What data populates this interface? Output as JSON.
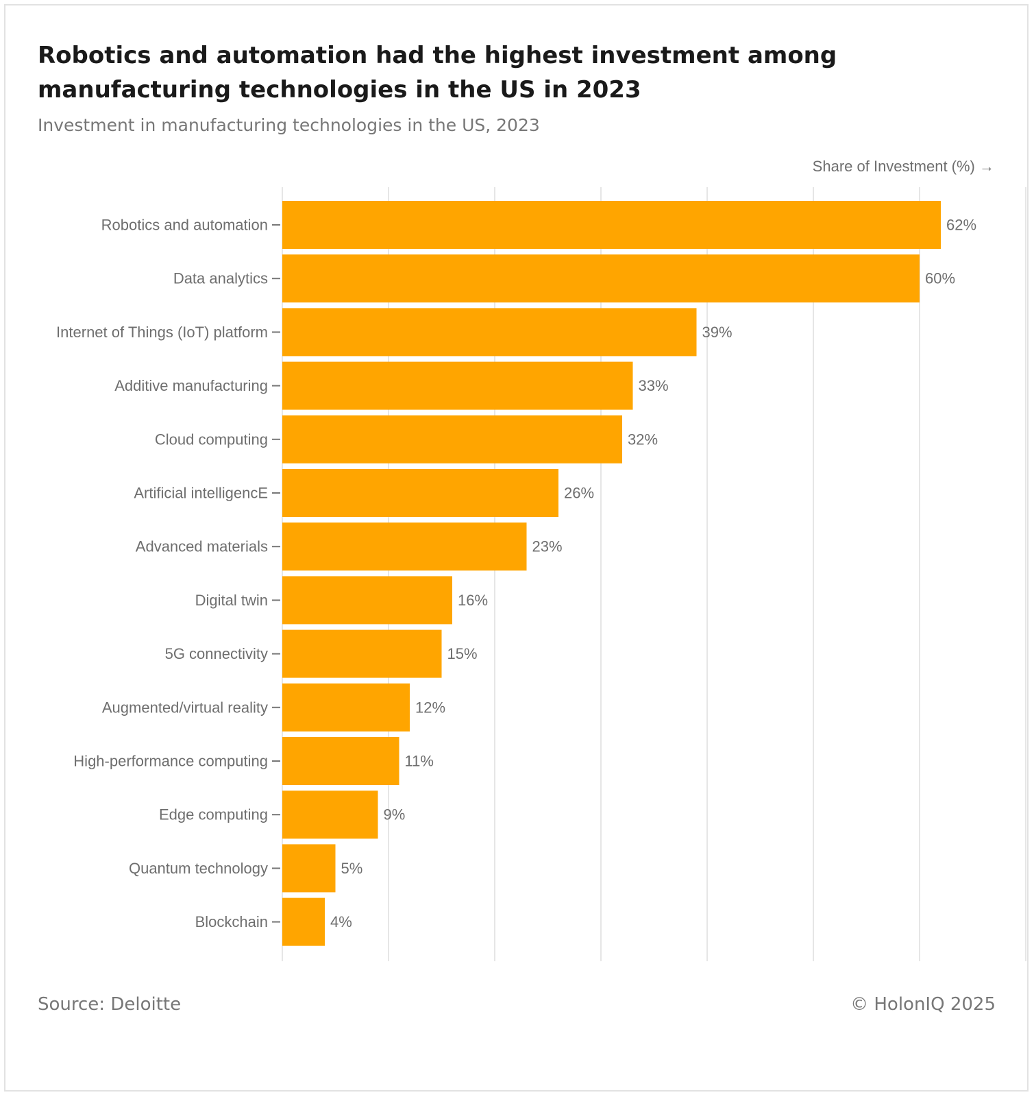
{
  "header": {
    "title": "Robotics and automation had the highest investment among manufacturing technologies in the US in 2023",
    "subtitle": "Investment in manufacturing technologies in the US, 2023"
  },
  "footer": {
    "source": "Source: Deloitte",
    "copyright": "© HolonIQ 2025"
  },
  "colors": {
    "bar": "#FFA500",
    "grid": "#e6e6e6",
    "text": "#6e6e6e"
  },
  "chart_data": {
    "type": "bar",
    "orientation": "horizontal",
    "xlabel": "Share of Investment (%) →",
    "xlim": [
      0,
      70
    ],
    "grid_step": 10,
    "grid": true,
    "value_suffix": "%",
    "categories": [
      "Robotics and automation",
      "Data analytics",
      "Internet of Things (IoT) platform",
      "Additive manufacturing",
      "Cloud computing",
      "Artificial intelligencE",
      "Advanced materials",
      "Digital twin",
      "5G connectivity",
      "Augmented/virtual reality",
      "High-performance computing",
      "Edge computing",
      "Quantum technology",
      "Blockchain"
    ],
    "values": [
      62,
      60,
      39,
      33,
      32,
      26,
      23,
      16,
      15,
      12,
      11,
      9,
      5,
      4
    ]
  }
}
